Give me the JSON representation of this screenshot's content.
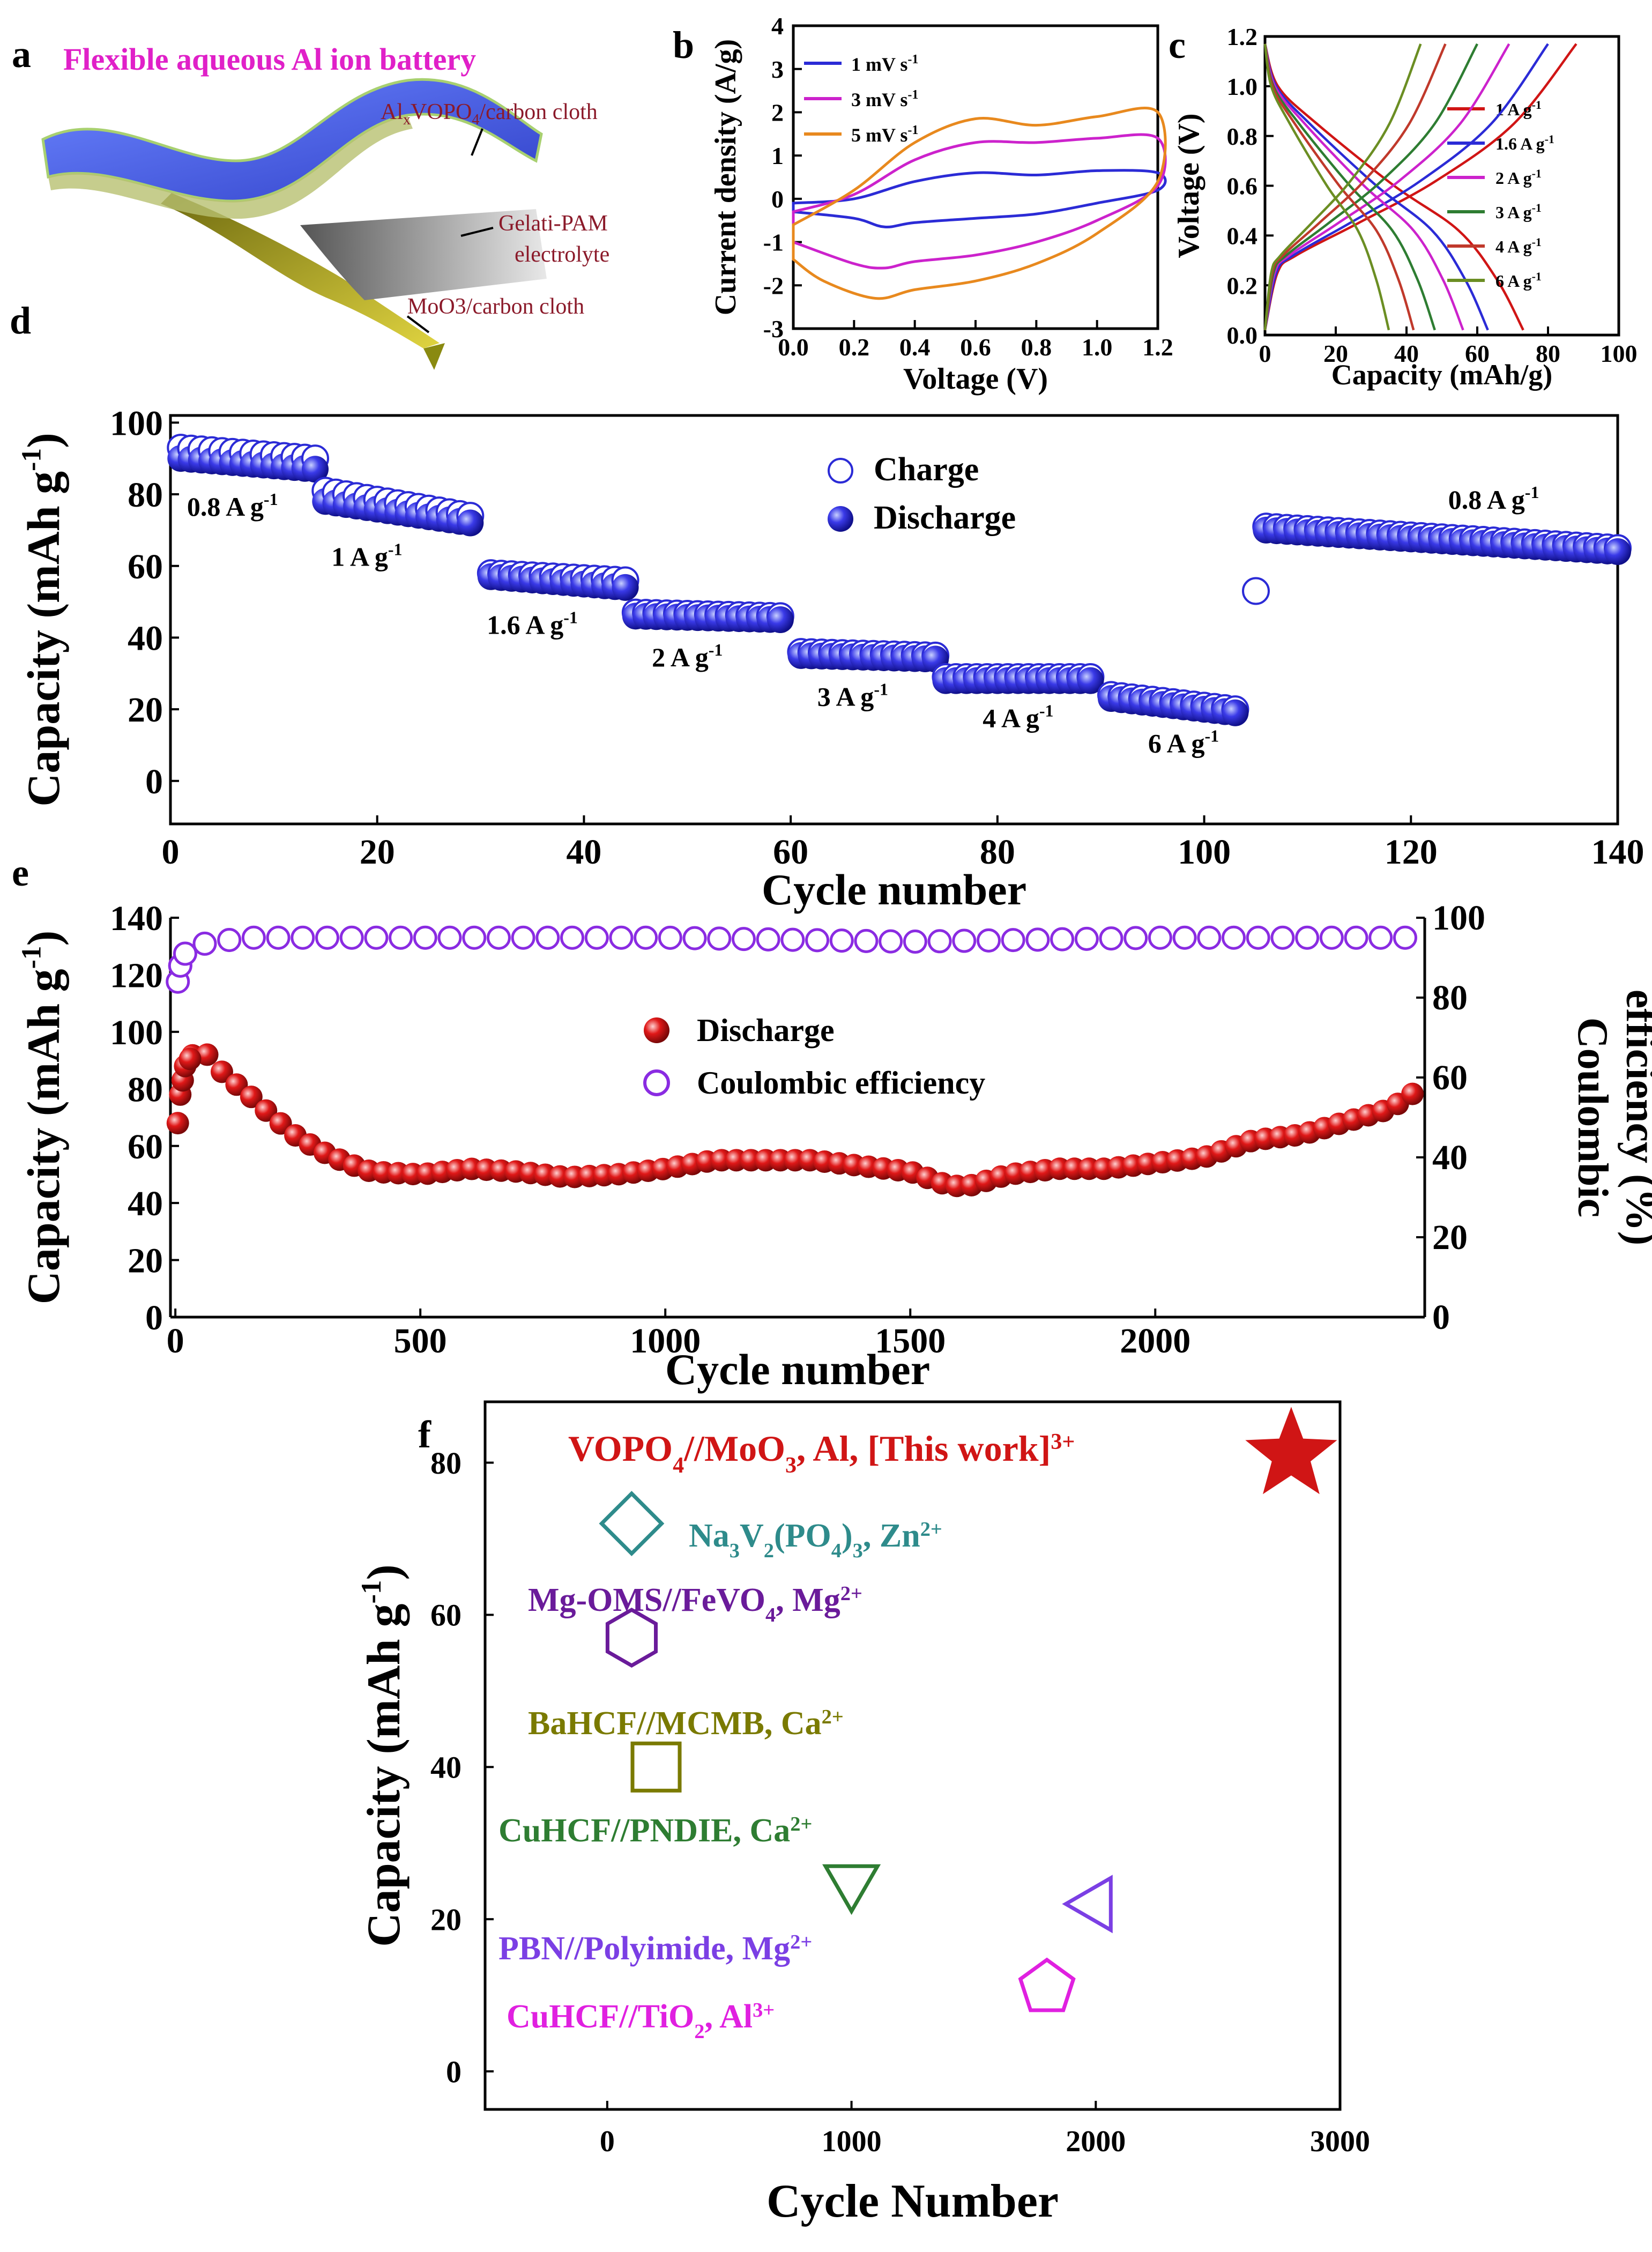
{
  "panel_letters": {
    "a": "a",
    "b": "b",
    "c": "c",
    "d": "d",
    "e": "e",
    "f": "f"
  },
  "panel_a": {
    "title": "Flexible aqueous Al ion battery",
    "cathode_prefix": "Al",
    "cathode_sub": "x",
    "cathode_mid": "VOPO",
    "cathode_sub2": "4",
    "cathode_suffix": "/carbon cloth",
    "electrolyte_line1": "Gelati-PAM",
    "electrolyte_line2": "electrolyte",
    "anode": "MoO3/carbon cloth",
    "colors": {
      "title": "#e020c8",
      "label": "#8b1a2a",
      "cathode": "#4a63e0",
      "anode": "#c8b820"
    }
  },
  "colors": {
    "blue": "#2b2bd6",
    "red": "#d01515",
    "purple": "#8a2be2",
    "teal": "#2e8b8b",
    "violet": "#6a1b9a",
    "olive": "#7a7a00",
    "green": "#2e7d32",
    "pbn": "#7b3fe4",
    "magenta": "#e020e0"
  },
  "chart_data": [
    {
      "id": "b",
      "type": "line",
      "title": "",
      "xlabel": "Voltage (V)",
      "ylabel": "Current density (A/g)",
      "xlim": [
        0.0,
        1.2
      ],
      "ylim": [
        -3,
        4
      ],
      "xticks": [
        "0.0",
        "0.2",
        "0.4",
        "0.6",
        "0.8",
        "1.0",
        "1.2"
      ],
      "yticks": [
        "-3",
        "-2",
        "-1",
        "0",
        "1",
        "2",
        "3",
        "4"
      ],
      "legend": [
        "1 mV s",
        "3 mV s",
        "5 mV s"
      ],
      "legend_sup": "-1",
      "series": [
        {
          "name": "1 mV s",
          "color": "#2b2bd6",
          "upper": [
            [
              0.0,
              -0.1
            ],
            [
              0.2,
              0.0
            ],
            [
              0.4,
              0.4
            ],
            [
              0.6,
              0.6
            ],
            [
              0.8,
              0.55
            ],
            [
              1.0,
              0.65
            ],
            [
              1.2,
              0.6
            ]
          ],
          "lower": [
            [
              1.2,
              0.2
            ],
            [
              1.0,
              -0.1
            ],
            [
              0.8,
              -0.35
            ],
            [
              0.6,
              -0.45
            ],
            [
              0.4,
              -0.55
            ],
            [
              0.3,
              -0.65
            ],
            [
              0.2,
              -0.45
            ],
            [
              0.0,
              -0.3
            ]
          ]
        },
        {
          "name": "3 mV s",
          "color": "#cc22cc",
          "upper": [
            [
              0.0,
              -0.3
            ],
            [
              0.2,
              0.1
            ],
            [
              0.4,
              0.9
            ],
            [
              0.6,
              1.3
            ],
            [
              0.8,
              1.3
            ],
            [
              1.0,
              1.4
            ],
            [
              1.2,
              1.4
            ]
          ],
          "lower": [
            [
              1.2,
              0.3
            ],
            [
              1.0,
              -0.5
            ],
            [
              0.8,
              -1.0
            ],
            [
              0.6,
              -1.3
            ],
            [
              0.4,
              -1.45
            ],
            [
              0.3,
              -1.6
            ],
            [
              0.2,
              -1.5
            ],
            [
              0.0,
              -1.0
            ]
          ]
        },
        {
          "name": "5 mV s",
          "color": "#e8891e",
          "upper": [
            [
              0.0,
              -0.6
            ],
            [
              0.2,
              0.2
            ],
            [
              0.4,
              1.3
            ],
            [
              0.6,
              1.85
            ],
            [
              0.8,
              1.7
            ],
            [
              1.0,
              1.9
            ],
            [
              1.2,
              2.0
            ]
          ],
          "lower": [
            [
              1.2,
              0.4
            ],
            [
              1.0,
              -0.8
            ],
            [
              0.8,
              -1.5
            ],
            [
              0.6,
              -1.9
            ],
            [
              0.4,
              -2.1
            ],
            [
              0.27,
              -2.3
            ],
            [
              0.1,
              -1.9
            ],
            [
              0.0,
              -1.4
            ]
          ]
        }
      ]
    },
    {
      "id": "c",
      "type": "line",
      "xlabel": "Capacity (mAh/g)",
      "ylabel": "Voltage (V)",
      "xlim": [
        0,
        100
      ],
      "ylim": [
        0.0,
        1.2
      ],
      "xticks": [
        "0",
        "20",
        "40",
        "60",
        "80",
        "100"
      ],
      "yticks": [
        "0.0",
        "0.2",
        "0.4",
        "0.6",
        "0.8",
        "1.0",
        "1.2"
      ],
      "legend": [
        "1 A g",
        "1.6 A g",
        "2 A g",
        "3 A g",
        "4 A g",
        "6 A g"
      ],
      "legend_sup": "-1",
      "series": [
        {
          "name": "1 A g",
          "color": "#d01515",
          "charge_max": 88,
          "discharge_max": 73
        },
        {
          "name": "1.6 A g",
          "color": "#2b2bd6",
          "charge_max": 80,
          "discharge_max": 63
        },
        {
          "name": "2 A g",
          "color": "#cc22cc",
          "charge_max": 69,
          "discharge_max": 56
        },
        {
          "name": "3 A g",
          "color": "#2e7d32",
          "charge_max": 60,
          "discharge_max": 48
        },
        {
          "name": "4 A g",
          "color": "#c0392b",
          "charge_max": 51,
          "discharge_max": 42
        },
        {
          "name": "6 A g",
          "color": "#6b8e23",
          "charge_max": 44,
          "discharge_max": 35
        }
      ]
    },
    {
      "id": "d",
      "type": "scatter",
      "xlabel": "Cycle number",
      "ylabel": "Capacity (mAh g",
      "ylabel_sup": "-1",
      "ylabel_tail": ")",
      "xlim": [
        0,
        140
      ],
      "ylim": [
        -12,
        102
      ],
      "xticks": [
        "0",
        "20",
        "40",
        "60",
        "80",
        "100",
        "120",
        "140"
      ],
      "yticks": [
        "0",
        "20",
        "40",
        "60",
        "80",
        "100"
      ],
      "legend": [
        "Charge",
        "Discharge"
      ],
      "rate_labels": [
        {
          "text": "0.8 A g",
          "x": 6,
          "y": 74
        },
        {
          "text": "1 A g",
          "x": 19,
          "y": 60
        },
        {
          "text": "1.6 A g",
          "x": 35,
          "y": 41
        },
        {
          "text": "2 A g",
          "x": 50,
          "y": 32
        },
        {
          "text": "3 A g",
          "x": 66,
          "y": 21
        },
        {
          "text": "4 A g",
          "x": 82,
          "y": 15
        },
        {
          "text": "6 A g",
          "x": 98,
          "y": 8
        },
        {
          "text": "0.8 A g",
          "x": 128,
          "y": 76
        }
      ],
      "segments": [
        {
          "start": 1,
          "end": 14,
          "d0": 90,
          "d1": 87,
          "c0": 93,
          "c1": 90
        },
        {
          "start": 15,
          "end": 29,
          "d0": 78,
          "d1": 72,
          "c0": 81,
          "c1": 74
        },
        {
          "start": 31,
          "end": 44,
          "d0": 57,
          "d1": 54,
          "c0": 58,
          "c1": 56
        },
        {
          "start": 45,
          "end": 59,
          "d0": 46,
          "d1": 45,
          "c0": 47,
          "c1": 46
        },
        {
          "start": 61,
          "end": 74,
          "d0": 35,
          "d1": 34,
          "c0": 36,
          "c1": 35
        },
        {
          "start": 75,
          "end": 89,
          "d0": 28,
          "d1": 28,
          "c0": 29,
          "c1": 29
        },
        {
          "start": 91,
          "end": 103,
          "d0": 23,
          "d1": 19,
          "c0": 24,
          "c1": 20
        },
        {
          "start": 106,
          "end": 140,
          "d0": 70,
          "d1": 64,
          "c0": 71,
          "c1": 65
        }
      ],
      "outlier": {
        "x": 105,
        "y": 53
      }
    },
    {
      "id": "e",
      "type": "scatter",
      "xlabel": "Cycle number",
      "ylabel": "Capacity (mAh g",
      "ylabel_sup": "-1",
      "ylabel_tail": ")",
      "y2label_line1": "Coulombic",
      "y2label_line2": "efficiency (%)",
      "xlim": [
        -10,
        2550
      ],
      "ylim": [
        0,
        140
      ],
      "y2lim": [
        0,
        100
      ],
      "xticks": [
        "0",
        "500",
        "1000",
        "1500",
        "2000"
      ],
      "yticks": [
        "0",
        "20",
        "40",
        "60",
        "80",
        "100",
        "120",
        "140"
      ],
      "y2ticks": [
        "0",
        "20",
        "40",
        "60",
        "80",
        "100"
      ],
      "legend": [
        "Discharge",
        "Coulombic efficiency"
      ],
      "discharge": [
        [
          5,
          68
        ],
        [
          10,
          78
        ],
        [
          20,
          88
        ],
        [
          40,
          93
        ],
        [
          60,
          93
        ],
        [
          100,
          85
        ],
        [
          150,
          78
        ],
        [
          200,
          70
        ],
        [
          250,
          63
        ],
        [
          300,
          58
        ],
        [
          350,
          54
        ],
        [
          400,
          51
        ],
        [
          500,
          50
        ],
        [
          600,
          52
        ],
        [
          700,
          51
        ],
        [
          800,
          49
        ],
        [
          900,
          50
        ],
        [
          1000,
          52
        ],
        [
          1100,
          55
        ],
        [
          1200,
          55
        ],
        [
          1300,
          55
        ],
        [
          1400,
          53
        ],
        [
          1500,
          51
        ],
        [
          1580,
          46
        ],
        [
          1620,
          46
        ],
        [
          1700,
          50
        ],
        [
          1800,
          52
        ],
        [
          1900,
          52
        ],
        [
          2000,
          54
        ],
        [
          2100,
          56
        ],
        [
          2200,
          62
        ],
        [
          2300,
          64
        ],
        [
          2400,
          69
        ],
        [
          2480,
          73
        ],
        [
          2540,
          80
        ]
      ],
      "ce": [
        [
          5,
          84
        ],
        [
          10,
          88
        ],
        [
          20,
          91
        ],
        [
          40,
          93
        ],
        [
          80,
          94
        ],
        [
          150,
          95
        ],
        [
          300,
          95
        ],
        [
          600,
          95
        ],
        [
          1000,
          95
        ],
        [
          1500,
          94
        ],
        [
          2000,
          95
        ],
        [
          2540,
          95
        ]
      ]
    },
    {
      "id": "f",
      "type": "scatter",
      "xlabel": "Cycle Number",
      "ylabel": "Capacity (mAh g",
      "ylabel_sup": "-1",
      "ylabel_tail": ")",
      "xlim": [
        -500,
        3000
      ],
      "ylim": [
        -5,
        88
      ],
      "xticks": [
        "0",
        "1000",
        "2000",
        "3000"
      ],
      "yticks": [
        "0",
        "20",
        "40",
        "60",
        "80"
      ],
      "points": [
        {
          "label": "VOPO",
          "sub1": "4",
          "mid": "//MoO",
          "sub2": "3",
          "tail": ", Al",
          "sup": "3+",
          "tail2": ", [This work]",
          "x": 2800,
          "y": 81,
          "marker": "star",
          "color": "#d01515"
        },
        {
          "label": "Na",
          "sub1": "3",
          "mid": "V",
          "sub2": "2",
          "tail": "(PO",
          "sub3": "4",
          "tail2": ")",
          "sub4": "3",
          "tail3": ", Zn",
          "sup": "2+",
          "x": 100,
          "y": 72,
          "marker": "diamond",
          "color": "#2e8b8b"
        },
        {
          "label": "Mg-OMS//FeVO",
          "sub1": "4",
          "tail": ", Mg",
          "sup": "2+",
          "x": 100,
          "y": 57,
          "marker": "hexagon",
          "color": "#6a1b9a"
        },
        {
          "label": "BaHCF//MCMB, Ca",
          "sup": "2+",
          "x": 200,
          "y": 40,
          "marker": "square",
          "color": "#7a7a00"
        },
        {
          "label": "CuHCF//PNDIE, Ca",
          "sup": "2+",
          "x": 1000,
          "y": 25,
          "marker": "triangle-down",
          "color": "#2e7d32"
        },
        {
          "label": "PBN//Polyimide, Mg",
          "sup": "2+",
          "x": 2000,
          "y": 22,
          "marker": "triangle-left",
          "color": "#7b3fe4"
        },
        {
          "label": "CuHCF//TiO",
          "sub1": "2",
          "tail": ", Al",
          "sup": "3+",
          "x": 1800,
          "y": 11,
          "marker": "pentagon",
          "color": "#e020e0"
        }
      ]
    }
  ]
}
